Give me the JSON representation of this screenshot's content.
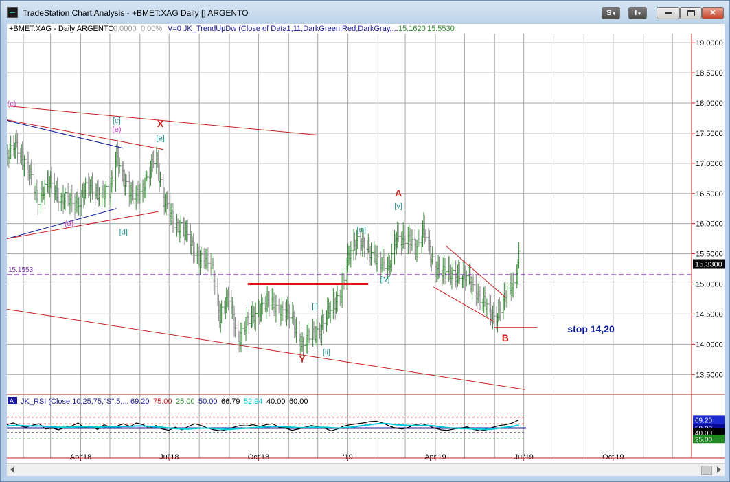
{
  "window": {
    "title": "TradeStation Chart Analysis - +BMET:XAG Daily [] ARGENTO",
    "buttons": {
      "s_label": "S",
      "i_label": "I"
    }
  },
  "header": {
    "symbol": "+BMET:XAG - Daily  ARGENTO",
    "change1": "0.0000",
    "change2": "0.00%",
    "indicator": "V=0  JK_TrendUpDw (Close of Data1,11,DarkGreen,Red,DarkGray,...",
    "val1": "15.1620",
    "val2": "15.5530"
  },
  "colors": {
    "up_bar": "#2e8b2e",
    "down_bar": "#8a8a8a",
    "red_line": "#c81e1e",
    "magenta": "#d040d0",
    "teal": "#1a8c8c",
    "navy": "#0a1a9a",
    "grid": "#a6a6a6",
    "last_price_bg": "#000000"
  },
  "chart_data": [
    {
      "type": "ohlc",
      "title": "",
      "xlabel": "",
      "ylabel": "",
      "ylim": [
        13.15,
        19.15
      ],
      "y_ticks": [
        "19.0000",
        "18.5000",
        "18.0000",
        "17.5000",
        "17.0000",
        "16.5000",
        "16.0000",
        "15.5000",
        "15.0000",
        "14.5000",
        "14.0000",
        "13.5000"
      ],
      "x_ticks": [
        "Apr'18",
        "Jul'18",
        "Oct'18",
        "'19",
        "Apr'19",
        "Jul'19",
        "Oct'19"
      ],
      "x_tick_dates": [
        "2018-04-01",
        "2018-07-01",
        "2018-10-01",
        "2019-01-01",
        "2019-04-01",
        "2019-07-01",
        "2019-10-01"
      ],
      "x_range": [
        "2018-01-15",
        "2019-12-20"
      ],
      "last_price": "15.3300",
      "reference_level": {
        "value": 15.1553,
        "label": "15.1553"
      },
      "close_series": [
        [
          "2018-01-15",
          17.05
        ],
        [
          "2018-01-25",
          17.35
        ],
        [
          "2018-02-05",
          16.9
        ],
        [
          "2018-02-15",
          16.45
        ],
        [
          "2018-02-28",
          16.65
        ],
        [
          "2018-03-12",
          16.45
        ],
        [
          "2018-03-25",
          16.3
        ],
        [
          "2018-04-05",
          16.55
        ],
        [
          "2018-04-20",
          16.55
        ],
        [
          "2018-05-01",
          16.45
        ],
        [
          "2018-05-08",
          17.2
        ],
        [
          "2018-05-20",
          16.45
        ],
        [
          "2018-06-01",
          16.55
        ],
        [
          "2018-06-10",
          16.7
        ],
        [
          "2018-06-17",
          17.25
        ],
        [
          "2018-06-25",
          16.4
        ],
        [
          "2018-07-05",
          16.05
        ],
        [
          "2018-07-15",
          15.95
        ],
        [
          "2018-07-25",
          15.6
        ],
        [
          "2018-08-05",
          15.4
        ],
        [
          "2018-08-15",
          15.25
        ],
        [
          "2018-08-22",
          14.5
        ],
        [
          "2018-09-01",
          14.75
        ],
        [
          "2018-09-10",
          14.1
        ],
        [
          "2018-09-20",
          14.35
        ],
        [
          "2018-10-01",
          14.6
        ],
        [
          "2018-10-15",
          14.7
        ],
        [
          "2018-10-25",
          14.55
        ],
        [
          "2018-11-05",
          14.45
        ],
        [
          "2018-11-15",
          13.95
        ],
        [
          "2018-11-25",
          14.15
        ],
        [
          "2018-12-05",
          14.3
        ],
        [
          "2018-12-15",
          14.6
        ],
        [
          "2018-12-25",
          14.9
        ],
        [
          "2019-01-05",
          15.6
        ],
        [
          "2019-01-12",
          15.8
        ],
        [
          "2019-01-22",
          15.5
        ],
        [
          "2019-02-01",
          15.45
        ],
        [
          "2019-02-12",
          15.2
        ],
        [
          "2019-02-20",
          15.85
        ],
        [
          "2019-03-01",
          15.7
        ],
        [
          "2019-03-12",
          15.65
        ],
        [
          "2019-03-20",
          15.9
        ],
        [
          "2019-03-28",
          15.4
        ],
        [
          "2019-04-05",
          15.25
        ],
        [
          "2019-04-15",
          15.15
        ],
        [
          "2019-04-25",
          15.2
        ],
        [
          "2019-05-05",
          15.05
        ],
        [
          "2019-05-15",
          14.85
        ],
        [
          "2019-05-25",
          14.55
        ],
        [
          "2019-06-01",
          14.45
        ],
        [
          "2019-06-08",
          14.65
        ],
        [
          "2019-06-15",
          14.85
        ],
        [
          "2019-06-21",
          15.05
        ],
        [
          "2019-06-26",
          15.5
        ]
      ],
      "trendlines": [
        {
          "color": "red",
          "from": [
            "2018-01-15",
            17.95
          ],
          "to": [
            "2018-11-30",
            17.47
          ]
        },
        {
          "color": "red",
          "from": [
            "2018-01-15",
            17.72
          ],
          "to": [
            "2018-06-25",
            17.23
          ]
        },
        {
          "color": "navy",
          "from": [
            "2018-01-15",
            17.71
          ],
          "to": [
            "2018-05-15",
            17.25
          ]
        },
        {
          "color": "navy",
          "from": [
            "2018-01-15",
            15.75
          ],
          "to": [
            "2018-05-08",
            16.25
          ]
        },
        {
          "color": "red",
          "from": [
            "2018-01-15",
            15.75
          ],
          "to": [
            "2018-06-20",
            16.2
          ]
        },
        {
          "color": "red",
          "from": [
            "2018-01-15",
            14.58
          ],
          "to": [
            "2019-07-02",
            13.25
          ]
        },
        {
          "color": "red_thick",
          "from": [
            "2018-09-20",
            15.0
          ],
          "to": [
            "2019-01-22",
            15.0
          ]
        },
        {
          "color": "red",
          "from": [
            "2019-03-30",
            14.95
          ],
          "to": [
            "2019-06-01",
            14.37
          ]
        },
        {
          "color": "red",
          "from": [
            "2019-04-12",
            15.63
          ],
          "to": [
            "2019-06-12",
            14.78
          ]
        },
        {
          "color": "red",
          "from": [
            "2019-06-01",
            14.28
          ],
          "to": [
            "2019-07-15",
            14.28
          ]
        }
      ],
      "annotations": [
        {
          "text": "(c)",
          "color": "magenta",
          "at": [
            "2018-01-20",
            17.95
          ],
          "size": 11,
          "bold": false
        },
        {
          "text": "[c]",
          "color": "teal",
          "at": [
            "2018-05-08",
            17.67
          ],
          "size": 11,
          "bold": false
        },
        {
          "text": "(e)",
          "color": "magenta",
          "at": [
            "2018-05-08",
            17.52
          ],
          "size": 11,
          "bold": false
        },
        {
          "text": "X",
          "color": "red",
          "at": [
            "2018-06-22",
            17.6
          ],
          "size": 14,
          "bold": true
        },
        {
          "text": "[e]",
          "color": "teal",
          "at": [
            "2018-06-22",
            17.38
          ],
          "size": 11,
          "bold": false
        },
        {
          "text": "(d)",
          "color": "magenta",
          "at": [
            "2018-03-20",
            15.96
          ],
          "size": 11,
          "bold": false
        },
        {
          "text": "[d]",
          "color": "teal",
          "at": [
            "2018-05-15",
            15.82
          ],
          "size": 11,
          "bold": false
        },
        {
          "text": "Y",
          "color": "red",
          "at": [
            "2018-11-15",
            13.7
          ],
          "size": 13,
          "bold": true
        },
        {
          "text": "[i]",
          "color": "teal",
          "at": [
            "2018-11-28",
            14.59
          ],
          "size": 11,
          "bold": false
        },
        {
          "text": "[ii]",
          "color": "teal",
          "at": [
            "2018-12-10",
            13.83
          ],
          "size": 11,
          "bold": false
        },
        {
          "text": "[iii]",
          "color": "teal",
          "at": [
            "2019-01-15",
            15.86
          ],
          "size": 11,
          "bold": false
        },
        {
          "text": "[iv]",
          "color": "teal",
          "at": [
            "2019-02-08",
            15.04
          ],
          "size": 11,
          "bold": false
        },
        {
          "text": "A",
          "color": "red",
          "at": [
            "2019-02-22",
            16.45
          ],
          "size": 14,
          "bold": true
        },
        {
          "text": "[v]",
          "color": "teal",
          "at": [
            "2019-02-22",
            16.25
          ],
          "size": 11,
          "bold": false
        },
        {
          "text": "B",
          "color": "red",
          "at": [
            "2019-06-12",
            14.05
          ],
          "size": 14,
          "bold": true
        },
        {
          "text": "stop 14,20",
          "color": "navy",
          "at": [
            "2019-08-15",
            14.2
          ],
          "size": 14,
          "bold": true
        }
      ]
    },
    {
      "type": "line",
      "title": "",
      "indicator_label": "JK_RSI (Close,10,25,75,\"S\",5,...",
      "values_printed": [
        "69.20",
        "75.00",
        "25.00",
        "50.00",
        "66.79",
        "52.94",
        "40.00",
        "60.00"
      ],
      "ylim": [
        0,
        100
      ],
      "levels": [
        {
          "value": 75,
          "label": ""
        },
        {
          "value": 60,
          "label": ""
        },
        {
          "value": 50,
          "label": "50.00"
        },
        {
          "value": 40,
          "label": "40.00"
        },
        {
          "value": 25,
          "label": "25.00"
        }
      ],
      "last_value": "69.20",
      "series": [
        {
          "color": "black",
          "values": [
            58,
            62,
            55,
            52,
            57,
            60,
            48,
            50,
            46,
            52,
            55,
            62,
            50,
            54,
            47,
            58,
            52,
            55,
            60,
            54,
            62,
            58,
            50,
            56,
            48,
            45,
            52,
            46,
            54,
            60,
            56,
            50,
            46,
            44,
            47,
            52,
            56,
            55,
            58,
            54,
            58,
            60,
            52,
            50,
            45,
            48,
            52,
            56,
            53,
            50,
            44,
            48,
            55,
            58,
            60,
            62,
            65,
            66,
            62,
            55,
            50,
            48,
            52,
            58,
            60,
            56,
            50,
            46,
            45,
            48,
            50,
            53,
            47,
            44,
            46,
            52,
            56,
            58,
            62,
            69
          ]
        },
        {
          "color": "cyan",
          "values": [
            55,
            56,
            56,
            55,
            55,
            55,
            54,
            53,
            52,
            52,
            52,
            53,
            53,
            53,
            52,
            53,
            53,
            53,
            54,
            54,
            55,
            55,
            54,
            53,
            52,
            50,
            49,
            48,
            48,
            49,
            50,
            50,
            49,
            48,
            47,
            48,
            49,
            50,
            51,
            52,
            53,
            54,
            54,
            53,
            52,
            51,
            51,
            52,
            52,
            52,
            51,
            50,
            51,
            52,
            54,
            56,
            58,
            60,
            61,
            60,
            58,
            57,
            56,
            56,
            56,
            56,
            55,
            53,
            51,
            50,
            49,
            49,
            48,
            48,
            47,
            48,
            50,
            52,
            54,
            57
          ]
        }
      ]
    }
  ]
}
